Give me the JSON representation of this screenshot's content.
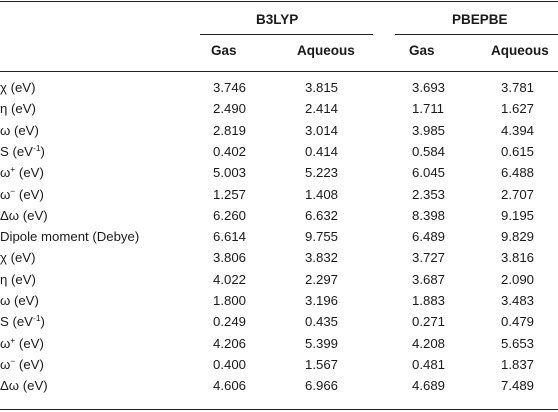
{
  "groups": [
    "B3LYP",
    "PBEPBE"
  ],
  "subheaders": [
    "Gas",
    "Aqueous",
    "Gas",
    "Aqueous"
  ],
  "rows": [
    {
      "label": "χ (eV)",
      "sup": "",
      "values": [
        "3.746",
        "3.815",
        "3.693",
        "3.781"
      ]
    },
    {
      "label": "η (eV)",
      "sup": "",
      "values": [
        "2.490",
        "2.414",
        "1.711",
        "1.627"
      ]
    },
    {
      "label": "ω (eV)",
      "sup": "",
      "values": [
        "2.819",
        "3.014",
        "3.985",
        "4.394"
      ]
    },
    {
      "label": "S (eV",
      "sup": "-1",
      "tail": ")",
      "values": [
        "0.402",
        "0.414",
        "0.584",
        "0.615"
      ]
    },
    {
      "label": "ω",
      "sup": "+",
      "tail": " (eV)",
      "values": [
        "5.003",
        "5.223",
        "6.045",
        "6.488"
      ]
    },
    {
      "label": "ω",
      "sup": "−",
      "tail": " (eV)",
      "values": [
        "1.257",
        "1.408",
        "2.353",
        "2.707"
      ]
    },
    {
      "label": "Δω (eV)",
      "sup": "",
      "values": [
        "6.260",
        "6.632",
        "8.398",
        "9.195"
      ]
    },
    {
      "label": "Dipole moment (Debye)",
      "sup": "",
      "values": [
        "6.614",
        "9.755",
        "6.489",
        "9.829"
      ]
    },
    {
      "label": "χ (eV)",
      "sup": "",
      "values": [
        "3.806",
        "3.832",
        "3.727",
        "3.816"
      ]
    },
    {
      "label": "η (eV)",
      "sup": "",
      "values": [
        "4.022",
        "2.297",
        "3.687",
        "2.090"
      ]
    },
    {
      "label": "ω (eV)",
      "sup": "",
      "values": [
        "1.800",
        "3.196",
        "1.883",
        "3.483"
      ]
    },
    {
      "label": "S (eV",
      "sup": "-1",
      "tail": ")",
      "values": [
        "0.249",
        "0.435",
        "0.271",
        "0.479"
      ]
    },
    {
      "label": "ω",
      "sup": "+",
      "tail": " (eV)",
      "values": [
        "4.206",
        "5.399",
        "4.208",
        "5.653"
      ]
    },
    {
      "label": "ω",
      "sup": "−",
      "tail": " (eV)",
      "values": [
        "0.400",
        "1.567",
        "0.481",
        "1.837"
      ]
    },
    {
      "label": "Δω (eV)",
      "sup": "",
      "values": [
        "4.606",
        "6.966",
        "4.689",
        "7.489"
      ]
    }
  ]
}
